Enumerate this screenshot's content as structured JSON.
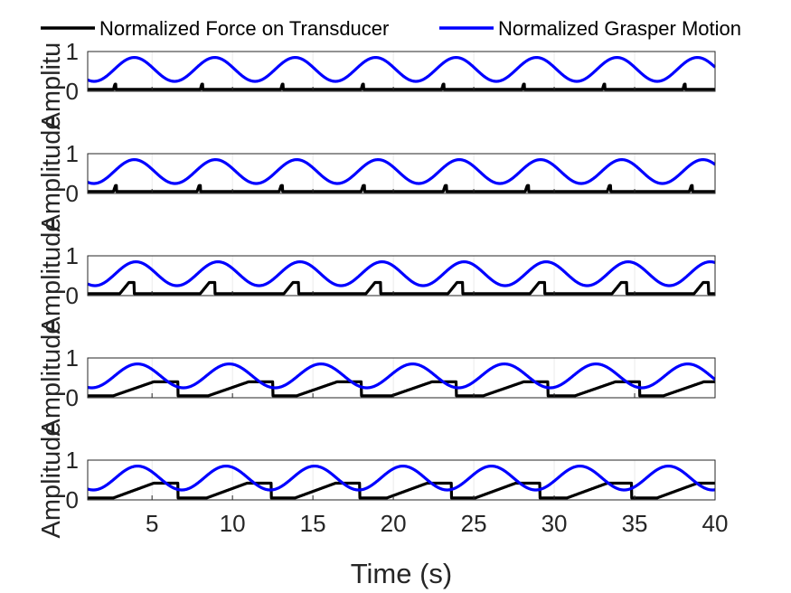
{
  "figure": {
    "xlabel": "Time (s)",
    "legend": {
      "entries": [
        {
          "label": "Normalized Force on Transducer",
          "color": "#000000"
        },
        {
          "label": "Normalized Grasper Motion",
          "color": "#0000ff"
        }
      ]
    }
  },
  "chart_data": [
    {
      "type": "line",
      "panel": 1,
      "ylabel": "Amplitude",
      "xlim": [
        1,
        40
      ],
      "ylim": [
        0,
        1
      ],
      "yticks": [
        0,
        1
      ],
      "xticks": [
        5,
        10,
        15,
        20,
        25,
        30,
        35,
        40
      ],
      "xtick_labels_shown": false,
      "grid": true,
      "series": [
        {
          "name": "Normalized Force on Transducer",
          "color": "#000000",
          "shape": "short spike",
          "peak": 0.18,
          "baseline": 0.05,
          "contact_width_s": 0.15,
          "rise_times_s": [
            2.6,
            8.0,
            13.0,
            18.0,
            23.0,
            28.0,
            33.0,
            38.0
          ]
        },
        {
          "name": "Normalized Grasper Motion",
          "color": "#0000ff",
          "shape": "sinusoid",
          "period_s": 5.0,
          "phase_peak_s": 3.9,
          "min": 0.25,
          "max": 0.85
        }
      ]
    },
    {
      "type": "line",
      "panel": 2,
      "ylabel": "Amplitude",
      "xlim": [
        1,
        40
      ],
      "ylim": [
        0,
        1
      ],
      "yticks": [
        0,
        1
      ],
      "xticks": [
        5,
        10,
        15,
        20,
        25,
        30,
        35,
        40
      ],
      "xtick_labels_shown": false,
      "grid": true,
      "series": [
        {
          "name": "Normalized Force on Transducer",
          "color": "#000000",
          "shape": "short spike",
          "peak": 0.2,
          "baseline": 0.05,
          "contact_width_s": 0.2,
          "rise_times_s": [
            2.6,
            7.8,
            12.9,
            18.0,
            23.1,
            28.2,
            33.3,
            38.4
          ]
        },
        {
          "name": "Normalized Grasper Motion",
          "color": "#0000ff",
          "shape": "sinusoid",
          "period_s": 5.05,
          "phase_peak_s": 3.9,
          "min": 0.25,
          "max": 0.85
        }
      ]
    },
    {
      "type": "line",
      "panel": 3,
      "ylabel": "Amplitude",
      "xlim": [
        1,
        40
      ],
      "ylim": [
        0,
        1
      ],
      "yticks": [
        0,
        1
      ],
      "xticks": [
        5,
        10,
        15,
        20,
        25,
        30,
        35,
        40
      ],
      "xtick_labels_shown": false,
      "grid": true,
      "series": [
        {
          "name": "Normalized Force on Transducer",
          "color": "#000000",
          "shape": "ramp",
          "peak": 0.33,
          "baseline": 0.05,
          "contact_width_s": 0.9,
          "rise_times_s": [
            3.0,
            8.0,
            13.2,
            18.3,
            23.4,
            28.5,
            33.6,
            38.7
          ]
        },
        {
          "name": "Normalized Grasper Motion",
          "color": "#0000ff",
          "shape": "sinusoid",
          "period_s": 5.1,
          "phase_peak_s": 4.0,
          "min": 0.25,
          "max": 0.85
        }
      ]
    },
    {
      "type": "line",
      "panel": 4,
      "ylabel": "Amplitude",
      "xlim": [
        1,
        40
      ],
      "ylim": [
        0,
        1
      ],
      "yticks": [
        0,
        1
      ],
      "xticks": [
        5,
        10,
        15,
        20,
        25,
        30,
        35,
        40
      ],
      "xtick_labels_shown": false,
      "grid": true,
      "series": [
        {
          "name": "Normalized Force on Transducer",
          "color": "#000000",
          "shape": "long ramp",
          "peak": 0.4,
          "baseline": 0.05,
          "contact_width_s": 4.0,
          "rise_times_s": [
            2.6,
            8.5,
            14.0,
            19.9,
            25.6,
            31.3,
            36.8
          ]
        },
        {
          "name": "Normalized Grasper Motion",
          "color": "#0000ff",
          "shape": "sinusoid with dips",
          "period_s": 5.7,
          "phase_peak_s": 4.1,
          "min": 0.25,
          "max": 0.85
        }
      ]
    },
    {
      "type": "line",
      "panel": 5,
      "ylabel": "Amplitude",
      "xlim": [
        1,
        40
      ],
      "ylim": [
        0,
        1
      ],
      "yticks": [
        0,
        1
      ],
      "xticks": [
        5,
        10,
        15,
        20,
        25,
        30,
        35,
        40
      ],
      "xtick_labels_shown": true,
      "grid": true,
      "series": [
        {
          "name": "Normalized Force on Transducer",
          "color": "#000000",
          "shape": "long ramp",
          "peak": 0.42,
          "baseline": 0.05,
          "contact_width_s": 4.0,
          "rise_times_s": [
            2.6,
            8.4,
            13.9,
            19.6,
            25.1,
            30.8,
            36.4
          ]
        },
        {
          "name": "Normalized Grasper Motion",
          "color": "#0000ff",
          "shape": "sinusoid with dips",
          "period_s": 5.5,
          "phase_peak_s": 4.1,
          "min": 0.25,
          "max": 0.85
        }
      ]
    }
  ]
}
